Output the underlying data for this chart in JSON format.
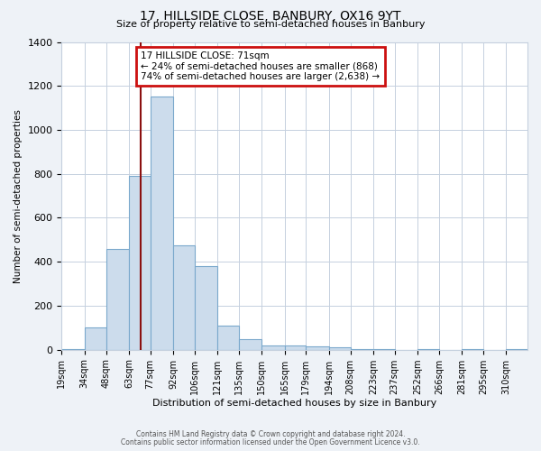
{
  "title": "17, HILLSIDE CLOSE, BANBURY, OX16 9YT",
  "subtitle": "Size of property relative to semi-detached houses in Banbury",
  "xlabel": "Distribution of semi-detached houses by size in Banbury",
  "ylabel": "Number of semi-detached properties",
  "footnote1": "Contains HM Land Registry data © Crown copyright and database right 2024.",
  "footnote2": "Contains public sector information licensed under the Open Government Licence v3.0.",
  "bar_edges": [
    19,
    34,
    48,
    63,
    77,
    92,
    106,
    121,
    135,
    150,
    165,
    179,
    194,
    208,
    223,
    237,
    252,
    266,
    281,
    295,
    310,
    324
  ],
  "bar_heights": [
    5,
    100,
    460,
    790,
    1150,
    475,
    380,
    110,
    50,
    20,
    20,
    15,
    10,
    5,
    5,
    0,
    5,
    0,
    5,
    0,
    5
  ],
  "x_tick_labels": [
    "19sqm",
    "34sqm",
    "48sqm",
    "63sqm",
    "77sqm",
    "92sqm",
    "106sqm",
    "121sqm",
    "135sqm",
    "150sqm",
    "165sqm",
    "179sqm",
    "194sqm",
    "208sqm",
    "223sqm",
    "237sqm",
    "252sqm",
    "266sqm",
    "281sqm",
    "295sqm",
    "310sqm"
  ],
  "x_tick_positions": [
    19,
    34,
    48,
    63,
    77,
    92,
    106,
    121,
    135,
    150,
    165,
    179,
    194,
    208,
    223,
    237,
    252,
    266,
    281,
    295,
    310
  ],
  "bar_color": "#ccdcec",
  "bar_edge_color": "#7aa8cc",
  "ylim": [
    0,
    1400
  ],
  "yticks": [
    0,
    200,
    400,
    600,
    800,
    1000,
    1200,
    1400
  ],
  "vline_x": 71,
  "vline_color": "#8b1010",
  "annotation_text": "17 HILLSIDE CLOSE: 71sqm\n← 24% of semi-detached houses are smaller (868)\n74% of semi-detached houses are larger (2,638) →",
  "annotation_box_color": "white",
  "annotation_box_edge_color": "#cc1010",
  "bg_color": "#eef2f7",
  "plot_bg_color": "white",
  "grid_color": "#c5d0de"
}
